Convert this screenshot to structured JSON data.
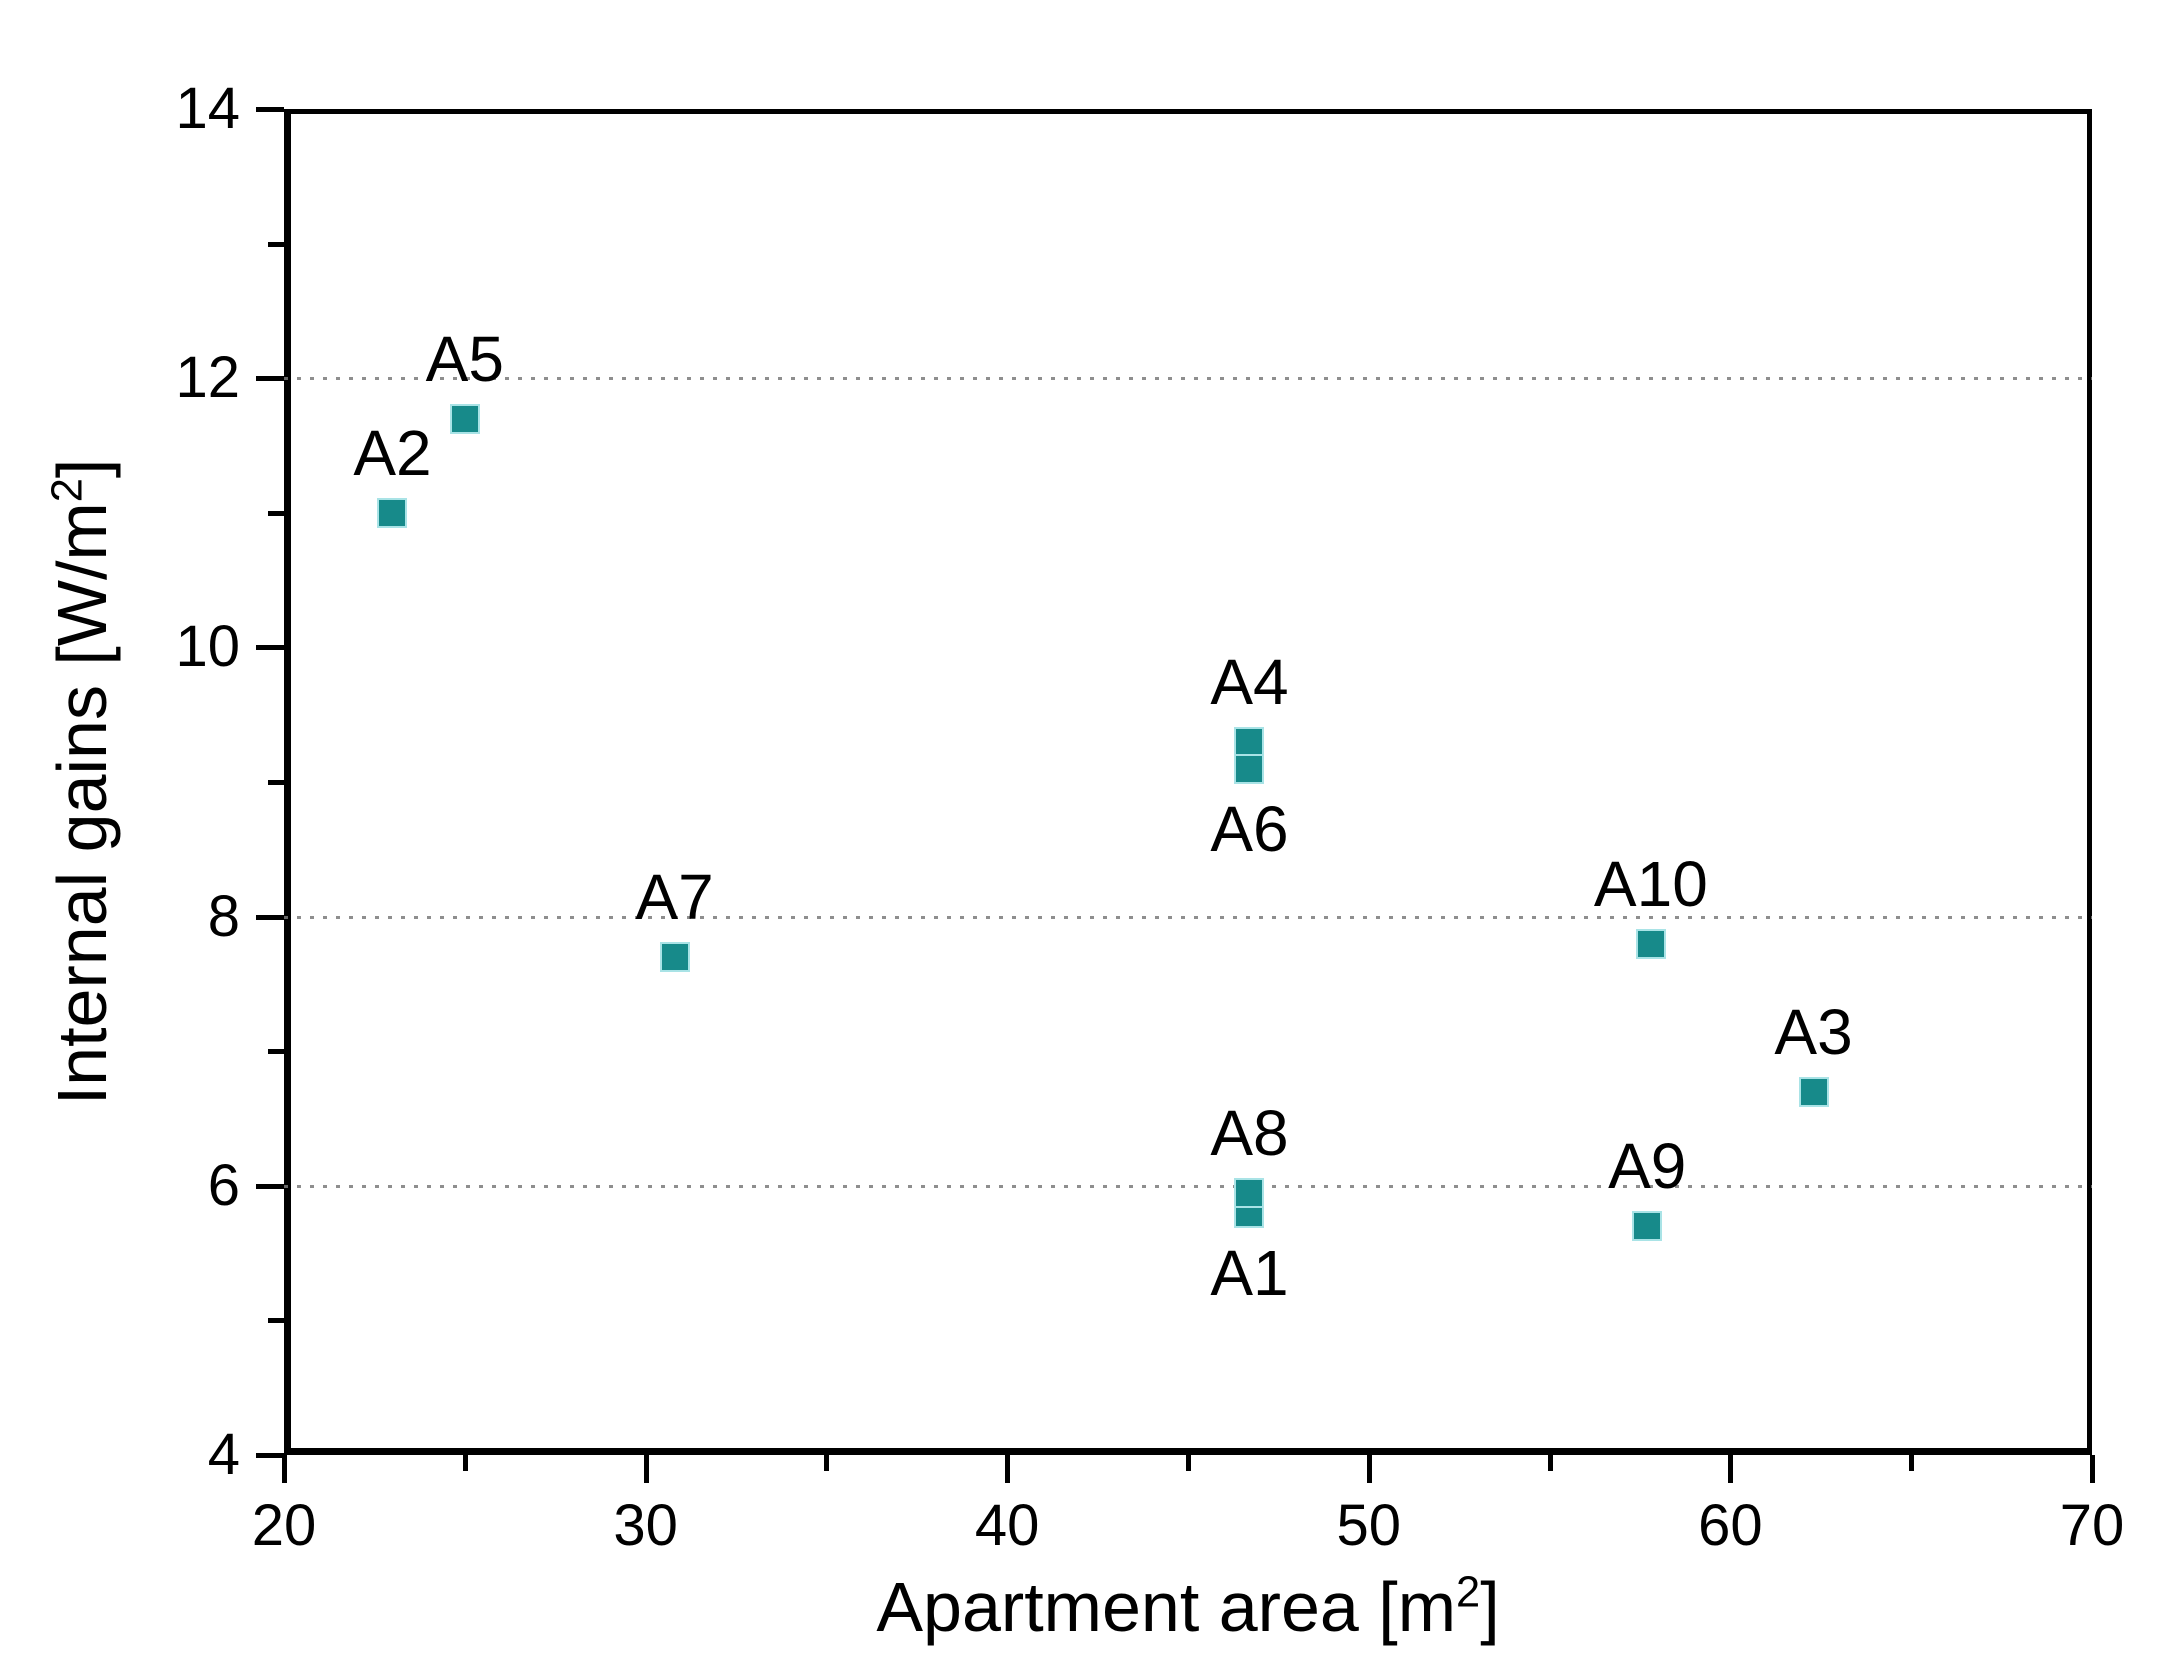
{
  "figure": {
    "background": "#ffffff",
    "axis_color": "#000000",
    "grid_color": "#7a7a7a",
    "marker_color": "#178a8a",
    "marker_edge_color": "#a9e3e6"
  },
  "x_axis": {
    "title_pre": "Apartment area [m",
    "title_sup": "2",
    "title_post": "]",
    "tick_labels": [
      "20",
      "30",
      "40",
      "50",
      "60",
      "70"
    ]
  },
  "y_axis": {
    "title_pre": "Internal gains [W/m",
    "title_sup": "2",
    "title_post": "]",
    "tick_labels": [
      "14",
      "12",
      "10",
      "8",
      "6",
      "4"
    ]
  },
  "chart_data": {
    "type": "scatter",
    "title": "",
    "xlabel": "Apartment area [m2]",
    "ylabel": "Internal gains [W/m2]",
    "xlim": [
      20,
      70
    ],
    "ylim": [
      4,
      14
    ],
    "x_major_ticks": [
      20,
      30,
      40,
      50,
      60,
      70
    ],
    "x_minor_ticks": [
      25,
      35,
      45,
      55,
      65
    ],
    "y_major_ticks": [
      14,
      12,
      10,
      8,
      6,
      4
    ],
    "y_minor_ticks": [
      13,
      11,
      9,
      7,
      5
    ],
    "gridlines_y": [
      12,
      8,
      6
    ],
    "grid_style": "dotted",
    "legend": "none",
    "marker": "square",
    "points": [
      {
        "label": "A1",
        "x": 46.7,
        "y": 5.8,
        "label_pos": "below"
      },
      {
        "label": "A2",
        "x": 23.0,
        "y": 11.0,
        "label_pos": "above"
      },
      {
        "label": "A3",
        "x": 62.3,
        "y": 6.7,
        "label_pos": "above"
      },
      {
        "label": "A4",
        "x": 46.7,
        "y": 9.3,
        "label_pos": "above"
      },
      {
        "label": "A5",
        "x": 25.0,
        "y": 11.7,
        "label_pos": "above"
      },
      {
        "label": "A6",
        "x": 46.7,
        "y": 9.1,
        "label_pos": "below"
      },
      {
        "label": "A7",
        "x": 30.8,
        "y": 7.7,
        "label_pos": "above"
      },
      {
        "label": "A8",
        "x": 46.7,
        "y": 5.95,
        "label_pos": "above"
      },
      {
        "label": "A9",
        "x": 57.7,
        "y": 5.7,
        "label_pos": "above"
      },
      {
        "label": "A10",
        "x": 57.8,
        "y": 7.8,
        "label_pos": "above"
      }
    ]
  }
}
